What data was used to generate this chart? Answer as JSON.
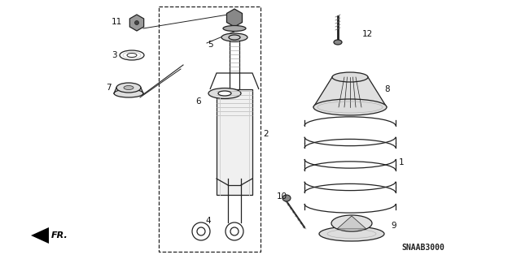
{
  "bg_color": "#ffffff",
  "line_color": "#222222",
  "code": "SNAAB3000",
  "fig_w": 6.4,
  "fig_h": 3.19,
  "dpi": 100
}
